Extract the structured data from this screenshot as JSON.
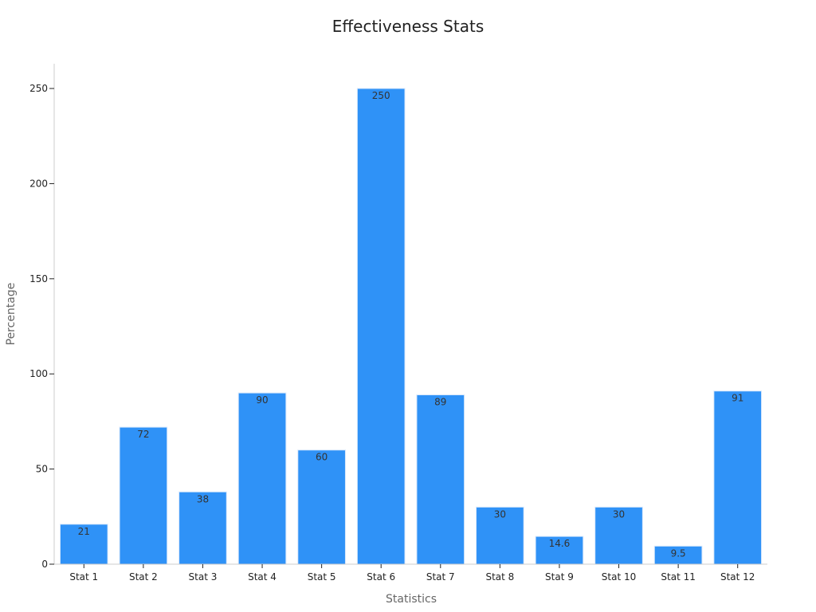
{
  "chart_data": {
    "type": "bar",
    "title": "Effectiveness Stats",
    "xlabel": "Statistics",
    "ylabel": "Percentage",
    "categories": [
      "Stat 1",
      "Stat 2",
      "Stat 3",
      "Stat 4",
      "Stat 5",
      "Stat 6",
      "Stat 7",
      "Stat 8",
      "Stat 9",
      "Stat 10",
      "Stat 11",
      "Stat 12"
    ],
    "values": [
      21,
      72,
      38,
      90,
      60,
      250,
      89,
      30,
      14.6,
      30,
      9.5,
      91
    ],
    "ylim": [
      0,
      263
    ],
    "yticks": [
      0,
      50,
      100,
      150,
      200,
      250
    ],
    "grid": false,
    "legend": "none",
    "colors": {
      "bar": "#2f92f7",
      "bar_edge": "#d8e8fb",
      "axis": "#cccccc",
      "text": "#222222",
      "label": "#666666"
    }
  }
}
